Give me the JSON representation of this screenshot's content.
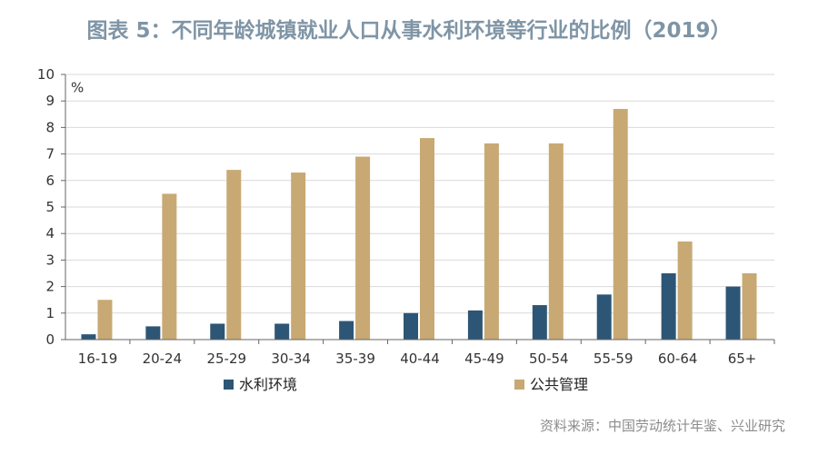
{
  "title": "图表 5：不同年龄城镇就业人口从事水利环境等行业的比例（2019）",
  "source": "资料来源：中国劳动统计年鉴、兴业研究",
  "colors": {
    "series1": "#2d5676",
    "series2": "#c8a974",
    "grid": "#d9d9d9",
    "title": "#7f95a6"
  },
  "chart_data": {
    "type": "bar",
    "title": "图表 5：不同年龄城镇就业人口从事水利环境等行业的比例（2019）",
    "unit_label": "%",
    "categories": [
      "16-19",
      "20-24",
      "25-29",
      "30-34",
      "35-39",
      "40-44",
      "45-49",
      "50-54",
      "55-59",
      "60-64",
      "65+"
    ],
    "series": [
      {
        "name": "水利环境",
        "values": [
          0.2,
          0.5,
          0.6,
          0.6,
          0.7,
          1.0,
          1.1,
          1.3,
          1.7,
          2.5,
          2.0
        ]
      },
      {
        "name": "公共管理",
        "values": [
          1.5,
          5.5,
          6.4,
          6.3,
          6.9,
          7.6,
          7.4,
          7.4,
          8.7,
          3.7,
          2.5
        ]
      }
    ],
    "ylim": [
      0,
      10
    ],
    "yticks": [
      0,
      1,
      2,
      3,
      4,
      5,
      6,
      7,
      8,
      9,
      10
    ],
    "grid": true,
    "legend_position": "bottom"
  }
}
